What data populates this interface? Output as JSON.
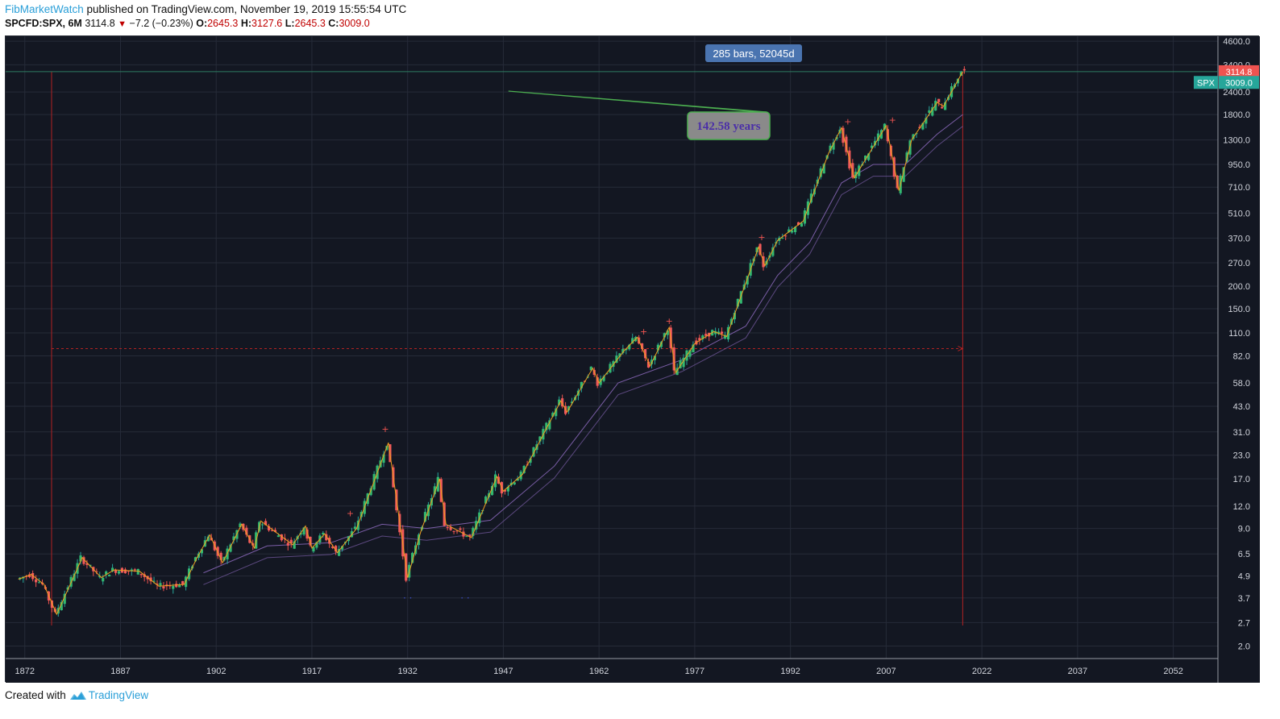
{
  "header": {
    "author": "FibMarketWatch",
    "published_text": " published on TradingView.com, November 19, 2019 15:55:54 UTC",
    "symbol": "SPCFD:SPX, 6M",
    "last": "3114.8",
    "change": "−7.2 (−0.23%)",
    "o_label": "O:",
    "o_value": "2645.3",
    "h_label": "H:",
    "h_value": "3127.6",
    "l_label": "L:",
    "l_value": "2645.3",
    "c_label": "C:",
    "c_value": "3009.0"
  },
  "footer": {
    "created_with": "Created with",
    "brand": "TradingView"
  },
  "colors": {
    "background": "#131722",
    "up": "#26a69a",
    "down": "#ef5350",
    "grid": "#262b38",
    "range_line": "#b22222",
    "ma": "#7b5ea7"
  },
  "chart_data": {
    "type": "candlestick",
    "symbol": "SPX",
    "scale": "log",
    "x_ticks": [
      1872,
      1887,
      1902,
      1917,
      1932,
      1947,
      1962,
      1977,
      1992,
      2007,
      2022,
      2037,
      2052
    ],
    "x_range": [
      1869,
      2059
    ],
    "y_ticks": [
      2.0,
      2.7,
      3.7,
      4.9,
      6.5,
      9.0,
      12.0,
      17.0,
      23.0,
      31.0,
      43.0,
      58.0,
      82.0,
      110.0,
      150.0,
      200.0,
      270.0,
      370.0,
      510.0,
      710.0,
      950.0,
      1300.0,
      1800.0,
      2400.0,
      3400.0,
      4600.0
    ],
    "y_range": [
      1.85,
      4900
    ],
    "series_points": [
      [
        1871,
        4.7
      ],
      [
        1873,
        5.0
      ],
      [
        1875,
        4.4
      ],
      [
        1877,
        3.0
      ],
      [
        1879,
        4.3
      ],
      [
        1881,
        6.2
      ],
      [
        1884,
        4.8
      ],
      [
        1886,
        5.3
      ],
      [
        1890,
        5.2
      ],
      [
        1893,
        4.3
      ],
      [
        1897,
        4.4
      ],
      [
        1899,
        6.2
      ],
      [
        1901,
        8.3
      ],
      [
        1903,
        5.8
      ],
      [
        1906,
        9.5
      ],
      [
        1908,
        7.0
      ],
      [
        1909,
        9.9
      ],
      [
        1914,
        7.3
      ],
      [
        1916,
        9.3
      ],
      [
        1917,
        7.0
      ],
      [
        1919,
        8.4
      ],
      [
        1921,
        6.6
      ],
      [
        1924,
        9.0
      ],
      [
        1929,
        27.0
      ],
      [
        1932,
        4.8
      ],
      [
        1934,
        8.5
      ],
      [
        1937,
        17.0
      ],
      [
        1938,
        9.5
      ],
      [
        1942,
        8.0
      ],
      [
        1946,
        17.5
      ],
      [
        1947,
        14.5
      ],
      [
        1950,
        18.0
      ],
      [
        1956,
        46.0
      ],
      [
        1957,
        40.0
      ],
      [
        1961,
        70.0
      ],
      [
        1962,
        58.0
      ],
      [
        1966,
        88.0
      ],
      [
        1968,
        104.0
      ],
      [
        1970,
        72.0
      ],
      [
        1973,
        118.0
      ],
      [
        1974,
        66.0
      ],
      [
        1977,
        96.0
      ],
      [
        1980,
        112.0
      ],
      [
        1982,
        105.0
      ],
      [
        1987,
        330.0
      ],
      [
        1988,
        260.0
      ],
      [
        1990,
        360.0
      ],
      [
        1994,
        460.0
      ],
      [
        1998,
        1100.0
      ],
      [
        2000,
        1520.0
      ],
      [
        2002,
        800.0
      ],
      [
        2007,
        1560.0
      ],
      [
        2009,
        680.0
      ],
      [
        2011,
        1300.0
      ],
      [
        2015,
        2100.0
      ],
      [
        2016,
        2000.0
      ],
      [
        2019,
        3114.8
      ]
    ],
    "ma_points": [
      [
        1900,
        5.1
      ],
      [
        1910,
        7.2
      ],
      [
        1920,
        7.5
      ],
      [
        1928,
        9.5
      ],
      [
        1935,
        9.0
      ],
      [
        1945,
        10.0
      ],
      [
        1955,
        20.0
      ],
      [
        1965,
        58.0
      ],
      [
        1975,
        78.0
      ],
      [
        1985,
        120.0
      ],
      [
        1990,
        230.0
      ],
      [
        1995,
        350.0
      ],
      [
        2000,
        750.0
      ],
      [
        2005,
        950.0
      ],
      [
        2010,
        950.0
      ],
      [
        2015,
        1400.0
      ],
      [
        2019,
        1800.0
      ]
    ],
    "range_tool": {
      "start_year": 1876.2,
      "end_year": 2019,
      "label": "285 bars, 52045d",
      "dashed_level": 90.0
    },
    "callout": {
      "text": "142.58 years"
    },
    "price_labels": {
      "last": {
        "value": 3114.8,
        "text": "3114.8",
        "color": "#ef5350"
      },
      "close": {
        "value": 3009.0,
        "text": "3009.0",
        "symbol": "SPX",
        "color": "#26a69a"
      }
    },
    "swing_markers_top": [
      [
        1928.5,
        31.0
      ],
      [
        1923,
        10.5
      ],
      [
        1969,
        108.0
      ],
      [
        1973,
        123.0
      ],
      [
        1987.5,
        360.0
      ],
      [
        2001,
        1580.0
      ],
      [
        2008,
        1620.0
      ]
    ],
    "swing_markers_bottom": [
      [
        1932,
        3.7
      ],
      [
        1941,
        3.7
      ]
    ]
  }
}
